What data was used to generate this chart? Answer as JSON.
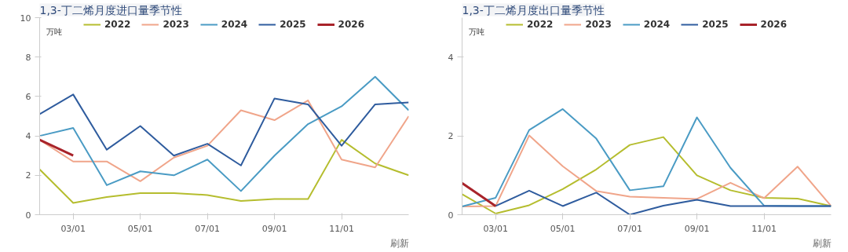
{
  "chart_data": [
    {
      "type": "line",
      "title": "1,3-丁二烯月度进口量季节性",
      "ylabel": "万吨",
      "annotations": [
        "刷新"
      ],
      "categories": [
        null,
        "03/01",
        null,
        "05/01",
        null,
        "07/01",
        null,
        "09/01",
        null,
        "11/01",
        null,
        null
      ],
      "ylim": [
        0,
        10
      ],
      "yticks": [
        0,
        2,
        4,
        6,
        8,
        10
      ],
      "legend": "top",
      "line_style": "solid",
      "series": [
        {
          "name": "2022",
          "color": "#b5bd2e",
          "values": [
            2.3,
            0.6,
            0.9,
            1.1,
            1.1,
            1.0,
            0.7,
            0.8,
            0.8,
            3.8,
            2.6,
            2.0
          ]
        },
        {
          "name": "2023",
          "color": "#f0a58a",
          "values": [
            3.8,
            2.7,
            2.7,
            1.7,
            2.9,
            3.5,
            5.3,
            4.8,
            5.8,
            2.8,
            2.4,
            5.0
          ]
        },
        {
          "name": "2024",
          "color": "#4a9bc4",
          "values": [
            4.0,
            4.4,
            1.5,
            2.2,
            2.0,
            2.8,
            1.2,
            3.0,
            4.6,
            5.5,
            7.0,
            5.3
          ]
        },
        {
          "name": "2025",
          "color": "#2f5c9e",
          "values": [
            5.1,
            6.1,
            3.3,
            4.5,
            3.0,
            3.6,
            2.5,
            5.9,
            5.6,
            3.5,
            5.6,
            5.7
          ]
        },
        {
          "name": "2026",
          "color": "#a8232a",
          "values": [
            3.8,
            3.0,
            null,
            null,
            null,
            null,
            null,
            null,
            null,
            null,
            null,
            null
          ]
        }
      ]
    },
    {
      "type": "line",
      "title": "1,3-丁二烯月度出口量季节性",
      "ylabel": "万吨",
      "annotations": [
        "刷新"
      ],
      "categories": [
        null,
        "03/01",
        null,
        "05/01",
        null,
        "07/01",
        null,
        "09/01",
        null,
        "11/01",
        null,
        null
      ],
      "ylim": [
        0,
        5
      ],
      "yticks": [
        0,
        2,
        4
      ],
      "legend": "top",
      "line_style": "solid",
      "series": [
        {
          "name": "2022",
          "color": "#b5bd2e",
          "values": [
            0.52,
            0.03,
            0.24,
            0.65,
            1.15,
            1.77,
            1.97,
            1.0,
            0.62,
            0.43,
            0.41,
            0.22
          ]
        },
        {
          "name": "2023",
          "color": "#f0a58a",
          "values": [
            0.21,
            0.22,
            2.01,
            1.23,
            0.6,
            0.46,
            0.43,
            0.4,
            0.81,
            0.42,
            1.22,
            0.22
          ]
        },
        {
          "name": "2024",
          "color": "#4a9bc4",
          "values": [
            0.21,
            0.43,
            2.15,
            2.68,
            1.93,
            0.62,
            0.72,
            2.47,
            1.19,
            0.23,
            0.22,
            0.22
          ]
        },
        {
          "name": "2025",
          "color": "#2f5c9e",
          "values": [
            null,
            0.22,
            0.61,
            0.22,
            0.56,
            0.0,
            0.23,
            0.38,
            0.22,
            0.22,
            0.22,
            0.22
          ]
        },
        {
          "name": "2026",
          "color": "#a8232a",
          "values": [
            0.8,
            0.22,
            null,
            null,
            null,
            null,
            null,
            null,
            null,
            null,
            null,
            null
          ]
        }
      ]
    }
  ]
}
